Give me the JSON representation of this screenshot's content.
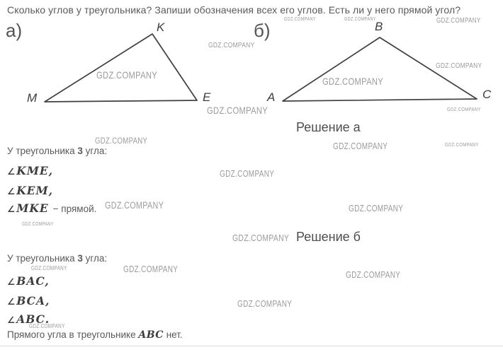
{
  "watermark": {
    "text": "GDZ.COMPANY"
  },
  "question": "Сколько углов у треугольника? Запиши обозначения всех его углов. Есть ли у него прямой угол?",
  "symbols": {
    "angle": "∠"
  },
  "figures": {
    "a": {
      "label": "а)",
      "top_vertex": "K",
      "left_vertex": "M",
      "right_vertex": "E"
    },
    "b": {
      "label": "б)",
      "top_vertex": "B",
      "left_vertex": "A",
      "right_vertex": "C"
    }
  },
  "solution_a": {
    "heading": "Решение а",
    "intro_prefix": "У треугольника ",
    "intro_bold": "3",
    "intro_suffix": " угла:",
    "angle1": "KME,",
    "angle2": "KEM,",
    "angle3": "MKE",
    "angle3_note": "− прямой."
  },
  "solution_b": {
    "heading": "Решение б",
    "intro_prefix": "У треугольника ",
    "intro_bold": "3",
    "intro_suffix": " угла:",
    "angle1": "BAC,",
    "angle2": "BCA,",
    "angle3": "ABC.",
    "final_prefix": "Прямого угла в треугольнике ",
    "final_math": "ABC",
    "final_suffix": " нет."
  }
}
